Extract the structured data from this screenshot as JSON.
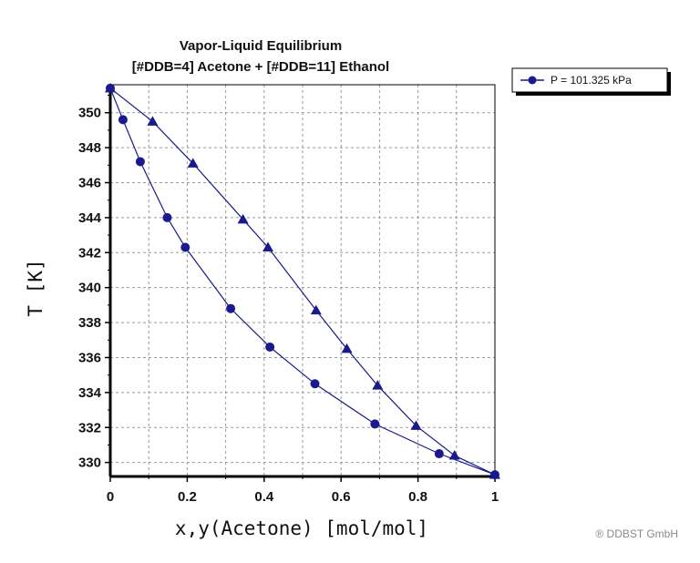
{
  "chart_data": {
    "type": "scatter",
    "title": "Vapor-Liquid Equilibrium",
    "subtitle": "[#DDB=4] Acetone + [#DDB=11] Ethanol",
    "xlabel": "x,y(Acetone) [mol/mol]",
    "ylabel": "T [K]",
    "xlim": [
      0,
      1
    ],
    "ylim": [
      329.2,
      351.6
    ],
    "xticks": [
      "0",
      "0.2",
      "0.4",
      "0.6",
      "0.8",
      "1"
    ],
    "xtick_values": [
      0,
      0.2,
      0.4,
      0.6,
      0.8,
      1
    ],
    "yticks": [
      "330",
      "332",
      "334",
      "336",
      "338",
      "340",
      "342",
      "344",
      "346",
      "348",
      "350"
    ],
    "ytick_values": [
      330,
      332,
      334,
      336,
      338,
      340,
      342,
      344,
      346,
      348,
      350
    ],
    "grid": true,
    "legend_position": "top-right",
    "legend_label": "P = 101.325 kPa",
    "color": "#1a1a8c",
    "series": [
      {
        "marker": "circle",
        "x": [
          0,
          0.033,
          0.078,
          0.148,
          0.195,
          0.313,
          0.415,
          0.532,
          0.688,
          0.855,
          1.0
        ],
        "y": [
          351.4,
          349.6,
          347.2,
          344.0,
          342.3,
          338.8,
          336.6,
          334.5,
          332.2,
          330.5,
          329.3
        ]
      },
      {
        "marker": "triangle",
        "x": [
          0,
          0.11,
          0.215,
          0.345,
          0.41,
          0.535,
          0.615,
          0.695,
          0.795,
          0.895,
          1.0
        ],
        "y": [
          351.4,
          349.5,
          347.1,
          343.9,
          342.3,
          338.7,
          336.5,
          334.4,
          332.1,
          330.4,
          329.3
        ]
      }
    ]
  },
  "copyright": "® DDBST GmbH"
}
